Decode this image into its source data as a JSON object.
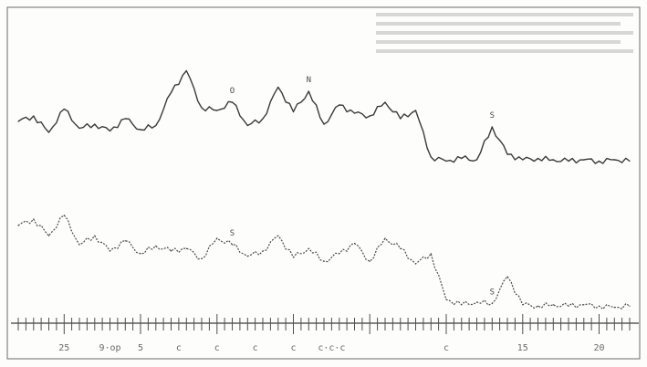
{
  "chart_data": {
    "type": "line",
    "title": "",
    "xlabel": "",
    "ylabel": "",
    "x_axis": {
      "direction": "descending",
      "ticks": [
        {
          "value": 25,
          "label": "25"
        },
        {
          "value": 22,
          "label": "9·op"
        },
        {
          "value": 20,
          "label": "5"
        },
        {
          "value": 17.5,
          "label": "c"
        },
        {
          "value": 15,
          "label": "c"
        },
        {
          "value": 12.5,
          "label": "c"
        },
        {
          "value": 10,
          "label": "c"
        },
        {
          "value": 7.5,
          "label": "c·c·c"
        },
        {
          "value": 0,
          "label": "c"
        },
        {
          "value": -5,
          "label": "15"
        },
        {
          "value": -10,
          "label": "20"
        }
      ]
    },
    "annotations": [
      {
        "trace": "upper",
        "label": "O",
        "x": 14
      },
      {
        "trace": "upper",
        "label": "N",
        "x": 9
      },
      {
        "trace": "upper",
        "label": "S",
        "x": -3
      },
      {
        "trace": "lower",
        "label": "S",
        "x": 14
      },
      {
        "trace": "lower",
        "label": "S",
        "x": -3
      }
    ],
    "series": [
      {
        "trace": "upper",
        "x": [
          28,
          27,
          26,
          25,
          24,
          23,
          22,
          21,
          20,
          19,
          18,
          17,
          16,
          15,
          14,
          13,
          12,
          11,
          10,
          9,
          8,
          7,
          6,
          5,
          4,
          3,
          2,
          1,
          0,
          -1,
          -2,
          -3,
          -4,
          -5,
          -6,
          -7,
          -8,
          -9,
          -10,
          -11,
          -12
        ],
        "values": [
          0.38,
          0.42,
          0.3,
          0.47,
          0.33,
          0.36,
          0.31,
          0.4,
          0.32,
          0.35,
          0.59,
          0.75,
          0.48,
          0.46,
          0.52,
          0.35,
          0.4,
          0.63,
          0.45,
          0.6,
          0.36,
          0.5,
          0.44,
          0.42,
          0.52,
          0.4,
          0.46,
          0.12,
          0.09,
          0.11,
          0.1,
          0.34,
          0.14,
          0.1,
          0.11,
          0.1,
          0.09,
          0.1,
          0.09,
          0.1,
          0.09
        ]
      },
      {
        "trace": "lower",
        "x": [
          28,
          27,
          26,
          25,
          24,
          23,
          22,
          21,
          20,
          19,
          18,
          17,
          16,
          15,
          14,
          13,
          12,
          11,
          10,
          9,
          8,
          7,
          6,
          5,
          4,
          3,
          2,
          1,
          0,
          -1,
          -2,
          -3,
          -4,
          -5,
          -6,
          -7,
          -8,
          -9,
          -10,
          -11,
          -12
        ],
        "values": [
          0.7,
          0.75,
          0.62,
          0.78,
          0.55,
          0.62,
          0.5,
          0.58,
          0.48,
          0.54,
          0.5,
          0.52,
          0.44,
          0.6,
          0.55,
          0.46,
          0.5,
          0.62,
          0.45,
          0.52,
          0.42,
          0.48,
          0.56,
          0.42,
          0.6,
          0.52,
          0.4,
          0.48,
          0.12,
          0.08,
          0.1,
          0.09,
          0.3,
          0.08,
          0.07,
          0.08,
          0.07,
          0.08,
          0.07,
          0.06,
          0.07
        ]
      }
    ]
  }
}
